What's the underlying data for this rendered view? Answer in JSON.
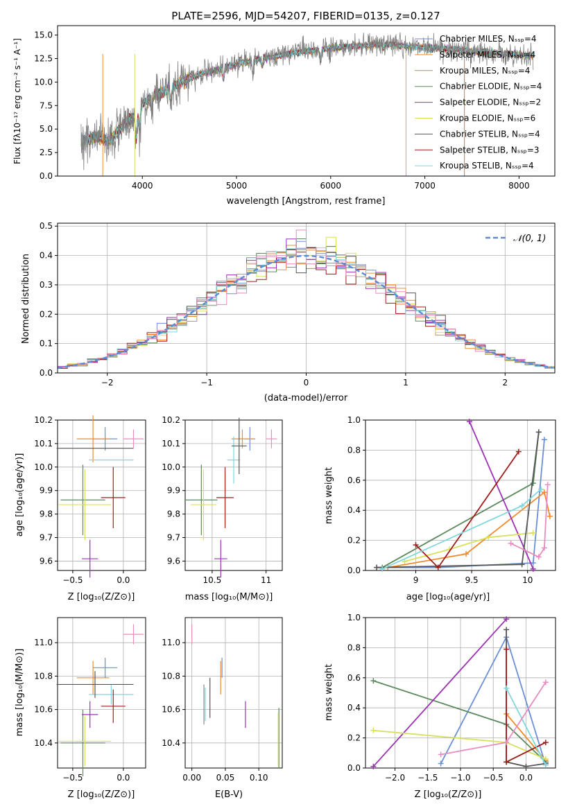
{
  "chart_data": [
    {
      "id": "spectrum",
      "type": "line",
      "title": "PLATE=2596, MJD=54207, FIBERID=0135, z=0.127",
      "xlabel": "wavelength [Angstrom, rest frame]",
      "ylabel": "Flux [fλ10⁻¹⁷ erg cm⁻² s⁻¹ A⁻¹]",
      "xlim": [
        3100,
        8380
      ],
      "ylim": [
        0,
        16
      ],
      "xticks": [
        4000,
        5000,
        6000,
        7000,
        8000
      ],
      "yticks": [
        0.0,
        2.5,
        5.0,
        7.5,
        10.0,
        12.5,
        15.0
      ],
      "grid": false,
      "legend_position": "top-right",
      "data_color": "#7f7f7f",
      "continuum": [
        [
          3350,
          3.6
        ],
        [
          3500,
          4.2
        ],
        [
          3650,
          3.8
        ],
        [
          3800,
          5.5
        ],
        [
          3950,
          6.6
        ],
        [
          4000,
          7.6
        ],
        [
          4100,
          8.5
        ],
        [
          4300,
          9.3
        ],
        [
          4500,
          10.4
        ],
        [
          4700,
          11.1
        ],
        [
          4860,
          11.5
        ],
        [
          5000,
          11.9
        ],
        [
          5200,
          12.4
        ],
        [
          5400,
          12.7
        ],
        [
          5600,
          13.1
        ],
        [
          5800,
          13.3
        ],
        [
          6000,
          13.6
        ],
        [
          6200,
          13.8
        ],
        [
          6400,
          13.9
        ],
        [
          6563,
          14.1
        ],
        [
          6700,
          13.9
        ],
        [
          7000,
          13.7
        ],
        [
          7300,
          13.5
        ],
        [
          7600,
          13.2
        ],
        [
          7900,
          13.0
        ],
        [
          8150,
          12.8
        ]
      ],
      "series": [
        {
          "name": "Chabrier MILES, Nₛₛₚ=4",
          "color": "#6a8fd6"
        },
        {
          "name": "Salpeter MILES, Nₛₛₚ=4",
          "color": "#f08a2c"
        },
        {
          "name": "Kroupa MILES, Nₛₛₚ=4",
          "color": "#d9822b"
        },
        {
          "name": "Chabrier ELODIE, Nₛₛₚ=4",
          "color": "#5a8a5c"
        },
        {
          "name": "Salpeter ELODIE, Nₛₛₚ=2",
          "color": "#9b30b5"
        },
        {
          "name": "Kroupa ELODIE, Nₛₛₚ=6",
          "color": "#d7e05a"
        },
        {
          "name": "Chabrier STELIB, Nₛₛₚ=4",
          "color": "#555555"
        },
        {
          "name": "Salpeter STELIB, Nₛₛₚ=3",
          "color": "#a11a1a"
        },
        {
          "name": "Kroupa STELIB, Nₛₛₚ=4",
          "color": "#7fd8dc"
        }
      ]
    },
    {
      "id": "residuals",
      "type": "line",
      "xlabel": "(data-model)/error",
      "ylabel": "Normed distribution",
      "xlim": [
        -2.5,
        2.5
      ],
      "ylim": [
        0,
        0.51
      ],
      "xticks": [
        -2,
        -1,
        0,
        1,
        2
      ],
      "yticks": [
        0.0,
        0.1,
        0.2,
        0.3,
        0.4,
        0.5
      ],
      "grid": true,
      "legend_position": "top-right",
      "legend": "𝒩(0, 1)",
      "gaussian_color": "#5b8dd6",
      "bin_width": 0.1,
      "series_colors": [
        "#6a8fd6",
        "#f08a2c",
        "#e8903a",
        "#5a8a5c",
        "#9b30b5",
        "#d7e05a",
        "#555555",
        "#a11a1a",
        "#7fd8dc",
        "#e88bbf"
      ]
    },
    {
      "id": "age_vs_Z",
      "type": "scatter",
      "xlabel": "Z [log₁₀(Z/Z⊙)]",
      "ylabel": "age  [log₁₀(age/yr)]",
      "xlim": [
        -0.65,
        0.22
      ],
      "ylim": [
        9.56,
        10.2
      ],
      "xticks": [
        -0.5,
        0.0
      ],
      "xticklabels": [
        "−0.5",
        "0.0"
      ],
      "yticks": [
        9.6,
        9.7,
        9.8,
        9.9,
        10.0,
        10.1,
        10.2
      ],
      "grid": true,
      "points": [
        {
          "x": -0.18,
          "xerr": 0.12,
          "y": 10.12,
          "yerr": 0.05,
          "color": "#6a8fd6"
        },
        {
          "x": -0.3,
          "xerr": 0.16,
          "y": 10.12,
          "yerr": 0.1,
          "color": "#f08a2c"
        },
        {
          "x": -0.12,
          "xerr": 0.22,
          "y": 10.03,
          "yerr": 0.0,
          "color": "#7fd8dc"
        },
        {
          "x": -0.28,
          "xerr": 0.38,
          "y": 10.08,
          "yerr": 0.0,
          "color": "#555555"
        },
        {
          "x": -0.4,
          "xerr": 0.22,
          "y": 9.86,
          "yerr": 0.15,
          "color": "#5a8a5c"
        },
        {
          "x": -0.38,
          "xerr": 0.26,
          "y": 9.84,
          "yerr": 0.15,
          "color": "#d7e05a"
        },
        {
          "x": -0.1,
          "xerr": 0.12,
          "y": 9.87,
          "yerr": 0.13,
          "color": "#a11a1a"
        },
        {
          "x": -0.33,
          "xerr": 0.08,
          "y": 9.61,
          "yerr": 0.08,
          "color": "#9b30b5"
        },
        {
          "x": 0.1,
          "xerr": 0.1,
          "y": 10.12,
          "yerr": 0.04,
          "color": "#e88bbf"
        }
      ]
    },
    {
      "id": "age_vs_mass",
      "type": "scatter",
      "xlabel": "mass [log₁₀(M/M⊙)]",
      "xlim": [
        10.25,
        11.15
      ],
      "ylim": [
        9.56,
        10.2
      ],
      "xticks": [
        10.5,
        11.0
      ],
      "yticks": [
        9.6,
        9.7,
        9.8,
        9.9,
        10.0,
        10.1,
        10.2
      ],
      "grid": true,
      "points": [
        {
          "x": 10.85,
          "xerr": 0.05,
          "y": 10.12,
          "yerr": 0.05,
          "color": "#6a8fd6"
        },
        {
          "x": 10.78,
          "xerr": 0.1,
          "y": 10.12,
          "yerr": 0.04,
          "color": "#f08a2c"
        },
        {
          "x": 10.7,
          "xerr": 0.06,
          "y": 10.03,
          "yerr": 0.1,
          "color": "#7fd8dc"
        },
        {
          "x": 10.75,
          "xerr": 0.07,
          "y": 10.09,
          "yerr": 0.12,
          "color": "#555555"
        },
        {
          "x": 10.4,
          "xerr": 0.15,
          "y": 9.86,
          "yerr": 0.15,
          "color": "#5a8a5c"
        },
        {
          "x": 10.42,
          "xerr": 0.12,
          "y": 9.84,
          "yerr": 0.15,
          "color": "#d7e05a"
        },
        {
          "x": 10.62,
          "xerr": 0.08,
          "y": 9.87,
          "yerr": 0.13,
          "color": "#a11a1a"
        },
        {
          "x": 10.58,
          "xerr": 0.06,
          "y": 9.61,
          "yerr": 0.08,
          "color": "#9b30b5"
        },
        {
          "x": 11.05,
          "xerr": 0.05,
          "y": 10.12,
          "yerr": 0.04,
          "color": "#e88bbf"
        }
      ]
    },
    {
      "id": "massweight_vs_age",
      "type": "line",
      "xlabel": "age  [log₁₀(age/yr)]",
      "ylabel": "mass weight",
      "xlim": [
        8.55,
        10.25
      ],
      "ylim": [
        0,
        1
      ],
      "xticks": [
        9.0,
        9.5,
        10.0
      ],
      "yticks": [
        0.0,
        0.2,
        0.4,
        0.6,
        0.8,
        1.0
      ],
      "grid": true,
      "series": [
        {
          "color": "#6a8fd6",
          "points": [
            [
              8.65,
              0.02
            ],
            [
              9.2,
              0.02
            ],
            [
              10.05,
              0.05
            ],
            [
              10.15,
              0.87
            ]
          ]
        },
        {
          "color": "#f08a2c",
          "points": [
            [
              8.75,
              0.02
            ],
            [
              9.45,
              0.11
            ],
            [
              10.15,
              0.52
            ],
            [
              10.2,
              0.36
            ]
          ]
        },
        {
          "color": "#5a8a5c",
          "points": [
            [
              8.7,
              0.02
            ],
            [
              10.05,
              0.58
            ],
            [
              10.1,
              0.92
            ]
          ]
        },
        {
          "color": "#9b30b5",
          "points": [
            [
              9.48,
              0.99
            ],
            [
              10.05,
              0.01
            ]
          ]
        },
        {
          "color": "#d7e05a",
          "points": [
            [
              8.9,
              0.06
            ],
            [
              9.3,
              0.14
            ],
            [
              9.65,
              0.22
            ],
            [
              10.05,
              0.25
            ]
          ]
        },
        {
          "color": "#555555",
          "points": [
            [
              8.65,
              0.02
            ],
            [
              9.95,
              0.04
            ],
            [
              10.1,
              0.92
            ]
          ]
        },
        {
          "color": "#a11a1a",
          "points": [
            [
              9.0,
              0.17
            ],
            [
              9.2,
              0.02
            ],
            [
              9.92,
              0.79
            ]
          ]
        },
        {
          "color": "#7fd8dc",
          "points": [
            [
              8.7,
              0.01
            ],
            [
              9.95,
              0.43
            ],
            [
              10.12,
              0.54
            ]
          ]
        },
        {
          "color": "#e88bbf",
          "points": [
            [
              9.85,
              0.18
            ],
            [
              10.1,
              0.09
            ],
            [
              10.15,
              0.15
            ],
            [
              10.18,
              0.57
            ]
          ]
        }
      ]
    },
    {
      "id": "mass_vs_Z",
      "type": "scatter",
      "xlabel": "Z [log₁₀(Z/Z⊙)]",
      "ylabel": "mass [log₁₀(M/M⊙)]",
      "xlim": [
        -0.65,
        0.22
      ],
      "ylim": [
        10.25,
        11.15
      ],
      "xticks": [
        -0.5,
        0.0
      ],
      "xticklabels": [
        "−0.5",
        "0.0"
      ],
      "yticks": [
        10.4,
        10.6,
        10.8,
        11.0
      ],
      "grid": true,
      "points": [
        {
          "x": -0.18,
          "xerr": 0.12,
          "y": 10.85,
          "yerr": 0.06,
          "color": "#6a8fd6"
        },
        {
          "x": -0.3,
          "xerr": 0.16,
          "y": 10.79,
          "yerr": 0.1,
          "color": "#f08a2c"
        },
        {
          "x": -0.12,
          "xerr": 0.22,
          "y": 10.69,
          "yerr": 0.06,
          "color": "#7fd8dc"
        },
        {
          "x": -0.28,
          "xerr": 0.38,
          "y": 10.75,
          "yerr": 0.08,
          "color": "#555555"
        },
        {
          "x": -0.4,
          "xerr": 0.22,
          "y": 10.4,
          "yerr": 0.2,
          "color": "#5a8a5c"
        },
        {
          "x": -0.38,
          "xerr": 0.26,
          "y": 10.41,
          "yerr": 0.15,
          "color": "#d7e05a"
        },
        {
          "x": -0.1,
          "xerr": 0.12,
          "y": 10.62,
          "yerr": 0.1,
          "color": "#a11a1a"
        },
        {
          "x": -0.33,
          "xerr": 0.08,
          "y": 10.57,
          "yerr": 0.08,
          "color": "#9b30b5"
        },
        {
          "x": 0.1,
          "xerr": 0.1,
          "y": 11.05,
          "yerr": 0.06,
          "color": "#e88bbf"
        }
      ]
    },
    {
      "id": "mass_vs_ebv",
      "type": "scatter",
      "xlabel": "E(B-V)",
      "xlim": [
        -0.01,
        0.135
      ],
      "ylim": [
        10.25,
        11.15
      ],
      "xticks": [
        0.0,
        0.05,
        0.1
      ],
      "xticklabels": [
        "0.00",
        "0.05",
        "0.10"
      ],
      "yticks": [
        10.4,
        10.6,
        10.8,
        11.0
      ],
      "grid": true,
      "points": [
        {
          "x": 0.045,
          "xerr": 0,
          "y": 10.85,
          "yerr": 0.06,
          "color": "#6a8fd6"
        },
        {
          "x": 0.043,
          "xerr": 0,
          "y": 10.79,
          "yerr": 0.1,
          "color": "#f08a2c"
        },
        {
          "x": 0.02,
          "xerr": 0,
          "y": 10.63,
          "yerr": 0.1,
          "color": "#7fd8dc"
        },
        {
          "x": 0.027,
          "xerr": 0,
          "y": 10.67,
          "yerr": 0.12,
          "color": "#555555"
        },
        {
          "x": 0.13,
          "xerr": 0,
          "y": 10.43,
          "yerr": 0.18,
          "color": "#5a8a5c"
        },
        {
          "x": 0.129,
          "xerr": 0,
          "y": 10.42,
          "yerr": 0.16,
          "color": "#d7e05a"
        },
        {
          "x": 0.0,
          "xerr": 0,
          "y": 11.05,
          "yerr": 0.06,
          "color": "#e88bbf"
        },
        {
          "x": 0.08,
          "xerr": 0,
          "y": 10.57,
          "yerr": 0.08,
          "color": "#9b30b5"
        },
        {
          "x": 0.018,
          "xerr": 0,
          "y": 10.63,
          "yerr": 0.12,
          "color": "#888888"
        }
      ]
    },
    {
      "id": "massweight_vs_Z",
      "type": "line",
      "xlabel": "Z [log₁₀(Z/Z⊙)]",
      "ylabel": "mass weight",
      "xlim": [
        -2.45,
        0.45
      ],
      "ylim": [
        0,
        1
      ],
      "xticks": [
        -2.0,
        -1.5,
        -1.0,
        -0.5,
        0.0
      ],
      "xticklabels": [
        "−2.0",
        "−1.5",
        "−1.0",
        "−0.5",
        "0.0"
      ],
      "yticks": [
        0.0,
        0.2,
        0.4,
        0.6,
        0.8,
        1.0
      ],
      "grid": true,
      "series": [
        {
          "color": "#6a8fd6",
          "points": [
            [
              -1.3,
              0.03
            ],
            [
              -0.3,
              0.87
            ],
            [
              0.3,
              0.02
            ]
          ]
        },
        {
          "color": "#f08a2c",
          "points": [
            [
              -0.3,
              0.36
            ],
            [
              0.3,
              0.05
            ]
          ]
        },
        {
          "color": "#5a8a5c",
          "points": [
            [
              -2.33,
              0.58
            ],
            [
              -0.3,
              0.29
            ],
            [
              0.3,
              0.04
            ]
          ]
        },
        {
          "color": "#9b30b5",
          "points": [
            [
              -2.33,
              0.01
            ],
            [
              -0.3,
              0.99
            ]
          ]
        },
        {
          "color": "#d7e05a",
          "points": [
            [
              -2.33,
              0.25
            ],
            [
              -0.3,
              0.17
            ],
            [
              0.3,
              0.06
            ]
          ]
        },
        {
          "color": "#555555",
          "points": [
            [
              -0.3,
              0.92
            ],
            [
              -0.3,
              0.04
            ],
            [
              0.0,
              0.01
            ],
            [
              0.3,
              0.03
            ]
          ]
        },
        {
          "color": "#a11a1a",
          "points": [
            [
              -0.3,
              0.79
            ],
            [
              -0.3,
              0.04
            ],
            [
              0.3,
              0.17
            ]
          ]
        },
        {
          "color": "#7fd8dc",
          "points": [
            [
              -0.3,
              0.53
            ],
            [
              0.3,
              0.02
            ]
          ]
        },
        {
          "color": "#e88bbf",
          "points": [
            [
              -1.3,
              0.09
            ],
            [
              -0.3,
              0.17
            ],
            [
              0.3,
              0.57
            ]
          ]
        }
      ]
    }
  ]
}
